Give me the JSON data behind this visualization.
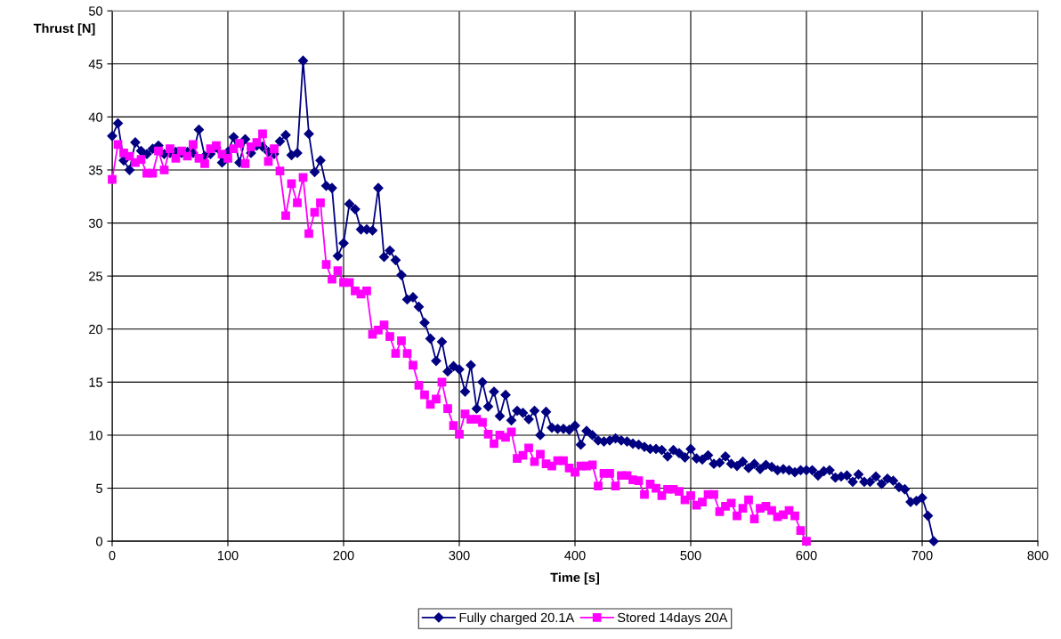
{
  "chart_data": {
    "type": "line",
    "xlabel": "Time [s]",
    "ylabel": "Thrust [N]",
    "xlim": [
      0,
      800
    ],
    "xticks": [
      0,
      100,
      200,
      300,
      400,
      500,
      600,
      700,
      800
    ],
    "ylim": [
      0,
      50
    ],
    "yticks": [
      0,
      5,
      10,
      15,
      20,
      25,
      30,
      35,
      40,
      45,
      50
    ],
    "grid": true,
    "legend": "bottom",
    "line_style": "solid",
    "series": [
      {
        "name": "Fully charged 20.1A",
        "color": "#000080",
        "marker": "diamond",
        "x": [
          0,
          5,
          10,
          15,
          20,
          25,
          30,
          35,
          40,
          45,
          50,
          55,
          60,
          65,
          70,
          75,
          80,
          85,
          90,
          95,
          100,
          105,
          110,
          115,
          120,
          125,
          130,
          135,
          140,
          145,
          150,
          155,
          160,
          165,
          170,
          175,
          180,
          185,
          190,
          195,
          200,
          205,
          210,
          215,
          220,
          225,
          230,
          235,
          240,
          245,
          250,
          255,
          260,
          265,
          270,
          275,
          280,
          285,
          290,
          295,
          300,
          305,
          310,
          315,
          320,
          325,
          330,
          335,
          340,
          345,
          350,
          355,
          360,
          365,
          370,
          375,
          380,
          385,
          390,
          395,
          400,
          405,
          410,
          415,
          420,
          425,
          430,
          435,
          440,
          445,
          450,
          455,
          460,
          465,
          470,
          475,
          480,
          485,
          490,
          495,
          500,
          505,
          510,
          515,
          520,
          525,
          530,
          535,
          540,
          545,
          550,
          555,
          560,
          565,
          570,
          575,
          580,
          585,
          590,
          595,
          600,
          605,
          610,
          615,
          620,
          625,
          630,
          635,
          640,
          645,
          650,
          655,
          660,
          665,
          670,
          675,
          680,
          685,
          690,
          695,
          700,
          705,
          710
        ],
        "values": [
          38.2,
          39.4,
          35.9,
          35.0,
          37.6,
          36.8,
          36.5,
          37.0,
          37.3,
          36.5,
          36.6,
          36.7,
          36.6,
          36.7,
          36.6,
          38.8,
          36.3,
          36.5,
          37.1,
          35.7,
          36.7,
          38.1,
          35.7,
          37.9,
          36.6,
          37.3,
          37.2,
          36.7,
          36.5,
          37.7,
          38.3,
          36.4,
          36.6,
          45.3,
          38.4,
          34.8,
          35.9,
          33.5,
          33.3,
          26.9,
          28.1,
          31.8,
          31.3,
          29.4,
          29.4,
          29.3,
          33.3,
          26.8,
          27.4,
          26.5,
          25.1,
          22.8,
          23.0,
          22.1,
          20.6,
          19.1,
          17.0,
          18.8,
          16.0,
          16.5,
          16.2,
          14.1,
          16.6,
          12.5,
          15.0,
          12.7,
          14.1,
          11.8,
          13.8,
          11.4,
          12.3,
          12.1,
          11.5,
          12.3,
          10.0,
          12.2,
          10.7,
          10.6,
          10.6,
          10.5,
          10.9,
          9.1,
          10.4,
          10.0,
          9.5,
          9.4,
          9.5,
          9.7,
          9.5,
          9.4,
          9.2,
          9.1,
          8.9,
          8.7,
          8.7,
          8.6,
          8.0,
          8.6,
          8.3,
          7.9,
          8.7,
          7.8,
          7.7,
          8.1,
          7.3,
          7.4,
          8.0,
          7.3,
          7.1,
          7.5,
          6.9,
          7.3,
          6.8,
          7.2,
          7.0,
          6.7,
          6.8,
          6.7,
          6.5,
          6.7,
          6.7,
          6.7,
          6.2,
          6.6,
          6.7,
          6.0,
          6.1,
          6.2,
          5.6,
          6.3,
          5.6,
          5.6,
          6.1,
          5.4,
          5.9,
          5.7,
          5.1,
          4.9,
          3.7,
          3.8,
          4.1,
          2.4,
          0.0
        ]
      },
      {
        "name": "Stored 14days 20A",
        "color": "#ff00ff",
        "marker": "square",
        "x": [
          0,
          5,
          10,
          15,
          20,
          25,
          30,
          35,
          40,
          45,
          50,
          55,
          60,
          65,
          70,
          75,
          80,
          85,
          90,
          95,
          100,
          105,
          110,
          115,
          120,
          125,
          130,
          135,
          140,
          145,
          150,
          155,
          160,
          165,
          170,
          175,
          180,
          185,
          190,
          195,
          200,
          205,
          210,
          215,
          220,
          225,
          230,
          235,
          240,
          245,
          250,
          255,
          260,
          265,
          270,
          275,
          280,
          285,
          290,
          295,
          300,
          305,
          310,
          315,
          320,
          325,
          330,
          335,
          340,
          345,
          350,
          355,
          360,
          365,
          370,
          375,
          380,
          385,
          390,
          395,
          400,
          405,
          410,
          415,
          420,
          425,
          430,
          435,
          440,
          445,
          450,
          455,
          460,
          465,
          470,
          475,
          480,
          485,
          490,
          495,
          500,
          505,
          510,
          515,
          520,
          525,
          530,
          535,
          540,
          545,
          550,
          555,
          560,
          565,
          570,
          575,
          580,
          585,
          590,
          595,
          600
        ],
        "values": [
          34.1,
          37.4,
          36.6,
          36.3,
          35.7,
          36.0,
          34.7,
          34.7,
          36.8,
          35.0,
          37.0,
          36.1,
          36.8,
          36.3,
          37.4,
          36.1,
          35.6,
          37.0,
          37.3,
          36.5,
          36.1,
          37.0,
          37.5,
          35.6,
          37.2,
          37.6,
          38.4,
          35.8,
          37.0,
          34.9,
          30.7,
          33.7,
          31.9,
          34.3,
          29.0,
          31.0,
          31.9,
          26.1,
          24.7,
          25.5,
          24.4,
          24.4,
          23.6,
          23.3,
          23.6,
          19.5,
          19.9,
          20.4,
          19.3,
          17.7,
          18.9,
          17.7,
          16.6,
          14.7,
          13.8,
          12.9,
          13.4,
          15.0,
          12.5,
          10.9,
          10.1,
          12.0,
          11.5,
          11.5,
          11.2,
          10.1,
          9.2,
          10.0,
          9.8,
          10.3,
          7.8,
          8.1,
          8.8,
          7.5,
          8.2,
          7.3,
          7.1,
          7.6,
          7.6,
          6.9,
          6.5,
          7.1,
          7.1,
          7.2,
          5.2,
          6.4,
          6.4,
          5.2,
          6.2,
          6.2,
          5.8,
          5.7,
          4.4,
          5.4,
          5.0,
          4.3,
          4.9,
          4.9,
          4.7,
          3.9,
          4.3,
          3.4,
          3.7,
          4.4,
          4.4,
          2.8,
          3.3,
          3.6,
          2.4,
          3.1,
          3.9,
          2.1,
          3.1,
          3.3,
          2.9,
          2.3,
          2.5,
          2.9,
          2.4,
          1.0,
          0.0
        ]
      }
    ]
  }
}
